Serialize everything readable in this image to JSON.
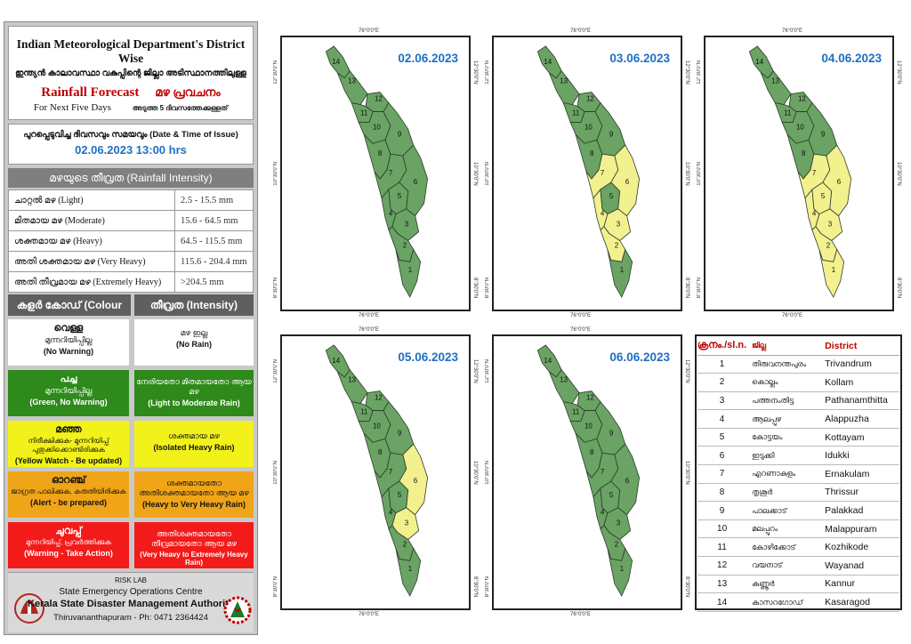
{
  "header": {
    "title_en": "Indian Meteorological Department's District Wise",
    "title_ml": "ഇന്ത്യൻ കാലാവസ്ഥാ വകുപ്പിന്റെ ജില്ലാ അടിസ്ഥാനത്തിലുള്ള",
    "forecast_en": "Rainfall Forecast",
    "forecast_ml": "മഴ പ്രവചനം",
    "next_days_en": "For Next Five Days",
    "next_days_ml": "അടുത്ത 5 ദിവസത്തേക്കുള്ളത്"
  },
  "issue": {
    "label": "പുറപ്പെടുവിച്ച ദിവസവും സമയവും (Date & Time of Issue)",
    "value": "02.06.2023 13:00 hrs"
  },
  "intensity": {
    "heading": "മഴയുടെ തീവ്രത (Rainfall Intensity)",
    "rows": [
      {
        "label": "ചാറ്റൽ മഴ (Light)",
        "range": "2.5 - 15.5 mm"
      },
      {
        "label": "മിതമായ മഴ (Moderate)",
        "range": "15.6 - 64.5 mm"
      },
      {
        "label": "ശക്തമായ മഴ (Heavy)",
        "range": "64.5 - 115.5 mm"
      },
      {
        "label": "അതി ശക്തമായ മഴ (Very Heavy)",
        "range": "115.6 - 204.4 mm"
      },
      {
        "label": "അതി തീവ്രമായ മഴ (Extremely Heavy)",
        "range": ">204.5 mm"
      }
    ]
  },
  "colour_code": {
    "heading_left": "കളർ കോഡ് (Colour Code)",
    "heading_right": "തീവ്രത (Intensity)",
    "rows": [
      {
        "color": "#ffffff",
        "code_ml": "വെള്ള",
        "code_ml2": "മുന്നറിയിപ്പില്ല",
        "code_en": "(No Warning)",
        "int_ml": "മഴ ഇല്ല",
        "int_en": "(No Rain)"
      },
      {
        "color": "#2e8a1a",
        "code_ml": "പച്ച",
        "code_ml2": "മുന്നറിയിപ്പില്ല",
        "code_en": "(Green, No Warning)",
        "int_ml": "നേരിയതോ മിതമായതോ ആയ മഴ",
        "int_en": "(Light to Moderate Rain)"
      },
      {
        "color": "#f2f21a",
        "code_ml": "മഞ്ഞ",
        "code_ml2": "നിരീക്ഷിക്കുക- മുന്നറിയിപ്പ് പുതുക്കിക്കൊണ്ടിരിക്കുക",
        "code_en": "(Yellow Watch - Be updated)",
        "int_ml": "ശക്തമായ മഴ",
        "int_en": "(Isolated Heavy Rain)"
      },
      {
        "color": "#f0a418",
        "code_ml": "ഓറഞ്ച്",
        "code_ml2": "ജാഗ്രത പാലിക്കുക, കരുതിയിരിക്കുക",
        "code_en": "(Alert - be prepared)",
        "int_ml": "ശക്തമായതോ അതിശക്തമായതോ ആയ മഴ",
        "int_en": "(Heavy to Very Heavy Rain)"
      },
      {
        "color": "#f31a1a",
        "code_ml": "ചുവപ്പ്",
        "code_ml2": "മുന്നറിയിപ്പ്, പ്രവർത്തിക്കുക",
        "code_en": "(Warning - Take Action)",
        "int_ml": "അതിശക്തമായതോ തീവ്രമായതോ ആയ മഴ",
        "int_en": "(Very Heavy to Extremely Heavy Rain)"
      }
    ]
  },
  "footer": {
    "risk_lab": "RISK LAB",
    "seoc": "State Emergency Operations Centre",
    "ksdma": "Kerala State Disaster Management Authority",
    "address": "Thiruvananthapuram - Ph: 0471 2364424"
  },
  "map_labels": {
    "lon": "76°0'0\"E",
    "lat_top": "12°30'0\"N",
    "lat_mid": "10°30'0\"N",
    "lat_bot": "8°30'0\"N"
  },
  "colors": {
    "green": "#6aa363",
    "yellow": "#f3f08e",
    "border": "#2b3a2b"
  },
  "maps": [
    {
      "date": "02.06.2023",
      "yellow_districts": []
    },
    {
      "date": "03.06.2023",
      "yellow_districts": [
        2,
        3,
        4,
        6,
        7
      ]
    },
    {
      "date": "04.06.2023",
      "yellow_districts": [
        1,
        2,
        3,
        4,
        5,
        6,
        7
      ]
    },
    {
      "date": "05.06.2023",
      "yellow_districts": [
        3,
        6
      ]
    },
    {
      "date": "06.06.2023",
      "yellow_districts": []
    }
  ],
  "district_table": {
    "headers": [
      "ക്രനം./sl.n.",
      "ജില്ല",
      "District"
    ],
    "rows": [
      {
        "n": "1",
        "ml": "തിരുവനന്തപുരം",
        "en": "Trivandrum"
      },
      {
        "n": "2",
        "ml": "കൊല്ലം",
        "en": "Kollam"
      },
      {
        "n": "3",
        "ml": "പത്തനംതിട്ട",
        "en": "Pathanamthitta"
      },
      {
        "n": "4",
        "ml": "ആലപ്പുഴ",
        "en": "Alappuzha"
      },
      {
        "n": "5",
        "ml": "കോട്ടയം",
        "en": "Kottayam"
      },
      {
        "n": "6",
        "ml": "ഇടുക്കി",
        "en": "Idukki"
      },
      {
        "n": "7",
        "ml": "എറണാകുളം",
        "en": "Ernakulam"
      },
      {
        "n": "8",
        "ml": "തൃശൂർ",
        "en": "Thrissur"
      },
      {
        "n": "9",
        "ml": "പാലക്കാട്",
        "en": "Palakkad"
      },
      {
        "n": "10",
        "ml": "മലപ്പുറം",
        "en": "Malappuram"
      },
      {
        "n": "11",
        "ml": "കോഴിക്കോട്",
        "en": "Kozhikode"
      },
      {
        "n": "12",
        "ml": "വയനാട്",
        "en": "Wayanad"
      },
      {
        "n": "13",
        "ml": "കണ്ണൂർ",
        "en": "Kannur"
      },
      {
        "n": "14",
        "ml": "കാസറഗോഡ്",
        "en": "Kasaragod"
      }
    ]
  }
}
